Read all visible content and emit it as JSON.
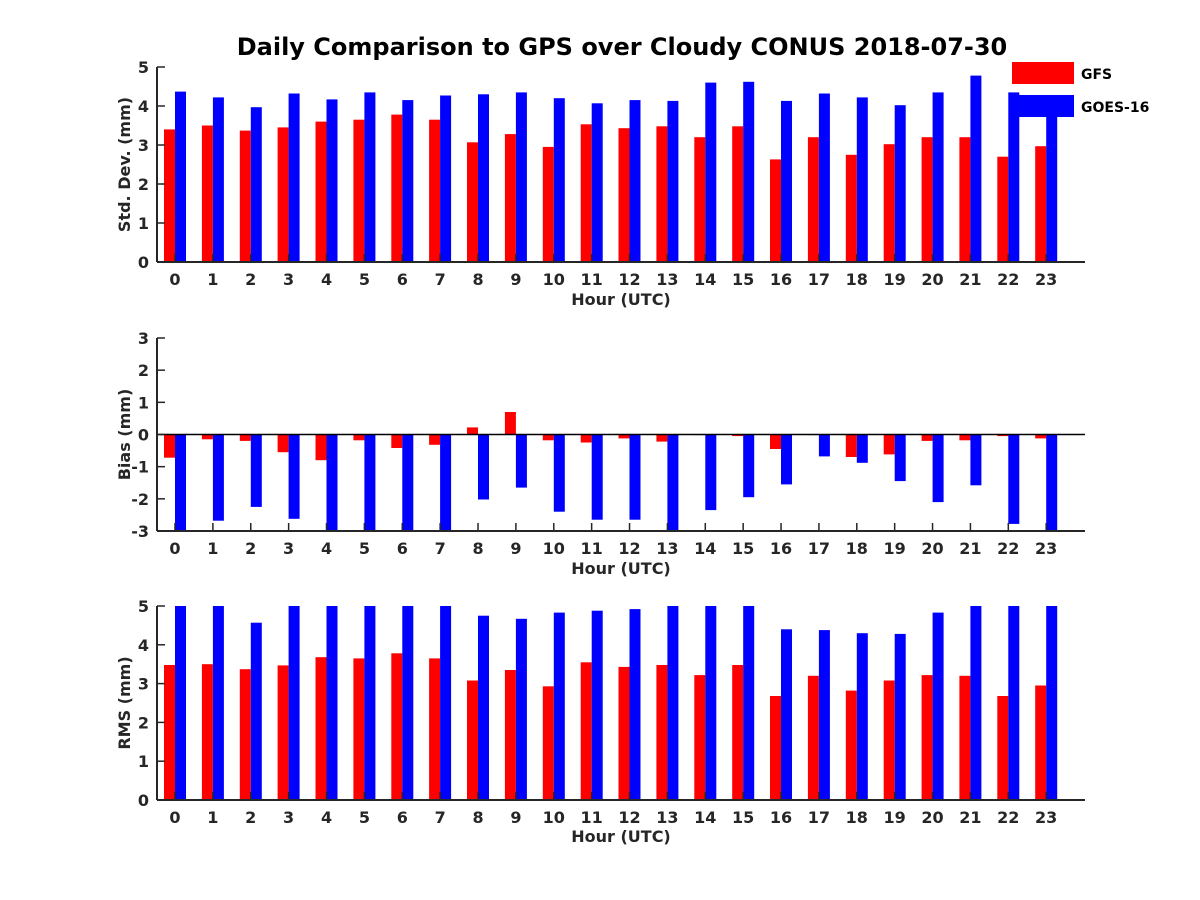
{
  "figure": {
    "title": "Daily Comparison to GPS over Cloudy CONUS 2018-07-30"
  },
  "colors": {
    "gfs": "#ff0000",
    "goes": "#0000ff"
  },
  "legend": {
    "placement": "top-right",
    "entries": [
      "GFS",
      "GOES-16"
    ]
  },
  "chart_data": [
    {
      "type": "bar",
      "xlabel": "Hour (UTC)",
      "ylabel": "Std. Dev. (mm)",
      "ylim": [
        0,
        5
      ],
      "yticks": [
        0,
        1,
        2,
        3,
        4,
        5
      ],
      "categories": [
        "0",
        "1",
        "2",
        "3",
        "4",
        "5",
        "6",
        "7",
        "8",
        "9",
        "10",
        "11",
        "12",
        "13",
        "14",
        "15",
        "16",
        "17",
        "18",
        "19",
        "20",
        "21",
        "22",
        "23"
      ],
      "series": [
        {
          "name": "GFS",
          "color": "#ff0000",
          "values": [
            3.4,
            3.5,
            3.37,
            3.45,
            3.6,
            3.65,
            3.78,
            3.65,
            3.07,
            3.28,
            2.95,
            3.53,
            3.43,
            3.48,
            3.2,
            3.48,
            2.63,
            3.2,
            2.75,
            3.02,
            3.2,
            3.2,
            2.7,
            2.97
          ]
        },
        {
          "name": "GOES-16",
          "color": "#0000ff",
          "values": [
            4.37,
            4.22,
            3.97,
            4.32,
            4.17,
            4.35,
            4.15,
            4.27,
            4.3,
            4.35,
            4.2,
            4.07,
            4.15,
            4.13,
            4.6,
            4.62,
            4.13,
            4.32,
            4.22,
            4.02,
            4.35,
            4.78,
            4.35,
            4.0
          ]
        }
      ]
    },
    {
      "type": "bar",
      "xlabel": "Hour (UTC)",
      "ylabel": "Bias (mm)",
      "ylim": [
        -3,
        3
      ],
      "yticks": [
        -3,
        -2,
        -1,
        0,
        1,
        2,
        3
      ],
      "zero_line": true,
      "categories": [
        "0",
        "1",
        "2",
        "3",
        "4",
        "5",
        "6",
        "7",
        "8",
        "9",
        "10",
        "11",
        "12",
        "13",
        "14",
        "15",
        "16",
        "17",
        "18",
        "19",
        "20",
        "21",
        "22",
        "23"
      ],
      "series": [
        {
          "name": "GFS",
          "color": "#ff0000",
          "values": [
            -0.72,
            -0.15,
            -0.2,
            -0.55,
            -0.8,
            -0.18,
            -0.42,
            -0.32,
            0.22,
            0.7,
            -0.18,
            -0.25,
            -0.12,
            -0.22,
            -0.02,
            -0.05,
            -0.45,
            -0.02,
            -0.7,
            -0.62,
            -0.2,
            -0.18,
            -0.05,
            -0.12
          ]
        },
        {
          "name": "GOES-16",
          "color": "#0000ff",
          "values": [
            -3.0,
            -2.68,
            -2.25,
            -2.62,
            -3.0,
            -3.0,
            -3.0,
            -3.0,
            -2.02,
            -1.65,
            -2.4,
            -2.65,
            -2.65,
            -3.0,
            -2.35,
            -1.95,
            -1.55,
            -0.68,
            -0.88,
            -1.45,
            -2.1,
            -1.58,
            -2.78,
            -3.0
          ]
        }
      ]
    },
    {
      "type": "bar",
      "xlabel": "Hour (UTC)",
      "ylabel": "RMS (mm)",
      "ylim": [
        0,
        5
      ],
      "yticks": [
        0,
        1,
        2,
        3,
        4,
        5
      ],
      "categories": [
        "0",
        "1",
        "2",
        "3",
        "4",
        "5",
        "6",
        "7",
        "8",
        "9",
        "10",
        "11",
        "12",
        "13",
        "14",
        "15",
        "16",
        "17",
        "18",
        "19",
        "20",
        "21",
        "22",
        "23"
      ],
      "series": [
        {
          "name": "GFS",
          "color": "#ff0000",
          "values": [
            3.48,
            3.5,
            3.37,
            3.47,
            3.68,
            3.65,
            3.78,
            3.65,
            3.08,
            3.35,
            2.93,
            3.55,
            3.43,
            3.48,
            3.22,
            3.48,
            2.68,
            3.2,
            2.82,
            3.08,
            3.22,
            3.2,
            2.68,
            2.95
          ]
        },
        {
          "name": "GOES-16",
          "color": "#0000ff",
          "values": [
            5.0,
            5.0,
            4.57,
            5.0,
            5.0,
            5.0,
            5.0,
            5.0,
            4.75,
            4.67,
            4.83,
            4.88,
            4.92,
            5.0,
            5.0,
            5.0,
            4.4,
            4.38,
            4.3,
            4.28,
            4.83,
            5.0,
            5.0,
            5.0
          ]
        }
      ]
    }
  ]
}
